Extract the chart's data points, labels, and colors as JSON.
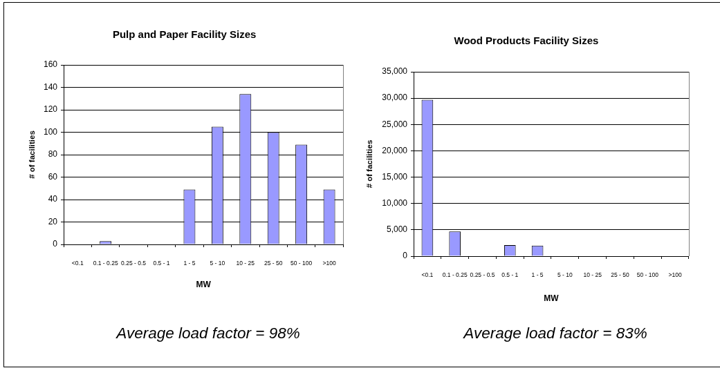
{
  "chart_data": [
    {
      "type": "bar",
      "title": "Pulp and Paper Facility Sizes",
      "xlabel": "MW",
      "ylabel": "# of facilities",
      "categories": [
        "<0.1",
        "0.1 - 0.25",
        "0.25 - 0.5",
        "0.5 - 1",
        "1 - 5",
        "5 - 10",
        "10 - 25",
        "25 - 50",
        "50 - 100",
        ">100"
      ],
      "values": [
        0,
        3,
        0,
        0,
        49,
        105,
        134,
        100,
        89,
        49
      ],
      "color": "#9999ff",
      "ylim": [
        0,
        160
      ],
      "yticks": [
        0,
        20,
        40,
        60,
        80,
        100,
        120,
        140,
        160
      ],
      "grid": "y",
      "annotations": [
        "Average load factor = 98%"
      ]
    },
    {
      "type": "bar",
      "title": "Wood Products Facility Sizes",
      "xlabel": "MW",
      "ylabel": "# of facilities",
      "categories": [
        "<0.1",
        "0.1 - 0.25",
        "0.25 - 0.5",
        "0.5 - 1",
        "1 - 5",
        "5 - 10",
        "10 - 25",
        "25 - 50",
        "50 - 100",
        ">100"
      ],
      "values": [
        29700,
        4700,
        0,
        2100,
        2000,
        0,
        0,
        0,
        0,
        0
      ],
      "color": "#9999ff",
      "ylim": [
        0,
        35000
      ],
      "yticks": [
        0,
        {
          "value": 5000,
          "label": "5,000"
        },
        {
          "value": 10000,
          "label": "10,000"
        },
        {
          "value": 15000,
          "label": "15,000"
        },
        {
          "value": 20000,
          "label": "20,000"
        },
        {
          "value": 25000,
          "label": "25,000"
        },
        {
          "value": 30000,
          "label": "30,000"
        },
        {
          "value": 35000,
          "label": "35,000"
        }
      ],
      "grid": "y",
      "annotations": [
        "Average load factor = 83%"
      ]
    }
  ]
}
